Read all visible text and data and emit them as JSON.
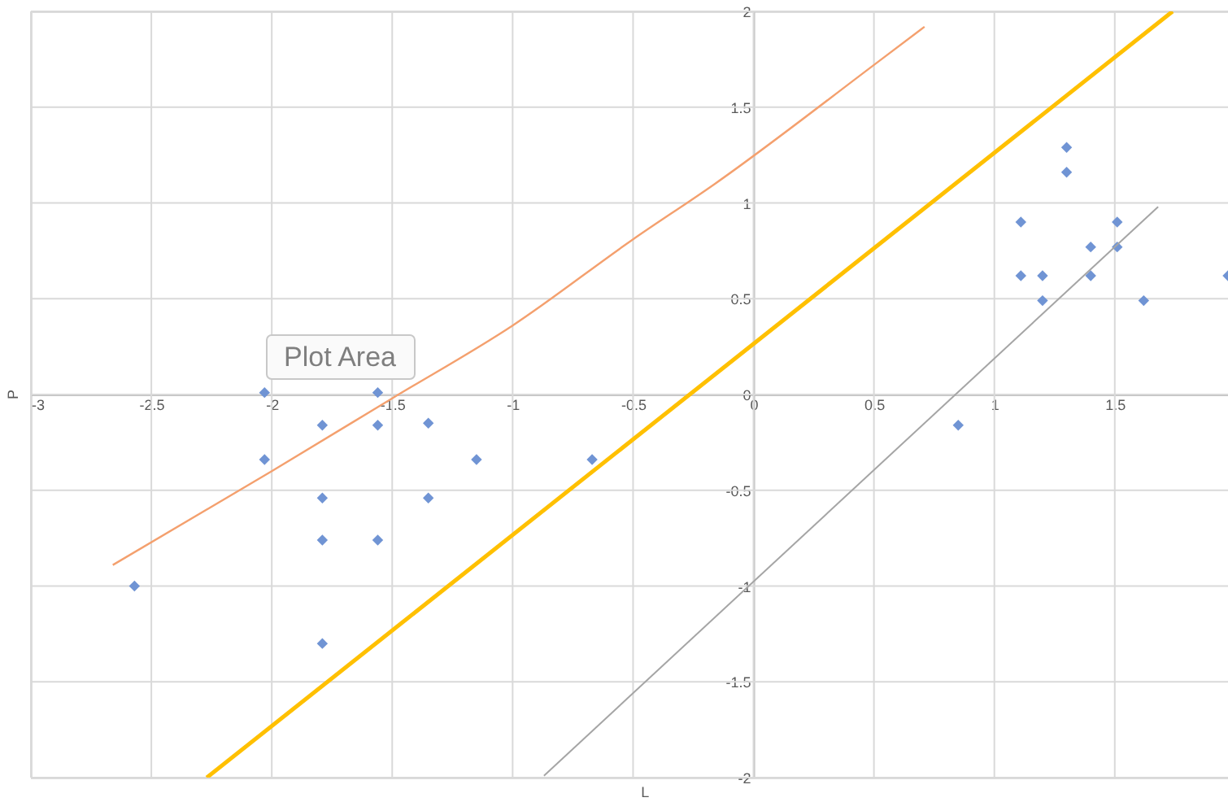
{
  "chart_data": {
    "type": "scatter",
    "xlabel": "L",
    "ylabel": "P",
    "annotations": [
      "Plot Area"
    ],
    "xlim": [
      -3,
      1.97
    ],
    "ylim": [
      -2,
      2
    ],
    "xticks": [
      -3,
      -2.5,
      -2,
      -1.5,
      -1,
      -0.5,
      0,
      0.5,
      1,
      1.5
    ],
    "yticks": [
      -2,
      -1.5,
      -1,
      -0.5,
      0,
      0.5,
      1,
      1.5,
      2
    ],
    "grid": true,
    "marker": "diamond",
    "series": [
      {
        "color": "#7094d4",
        "x": [
          -2.03,
          -1.56,
          -1.79,
          -1.56,
          -1.35,
          -2.03,
          -1.15,
          -0.67,
          -1.79,
          -1.35,
          -1.79,
          -1.56,
          -2.57,
          -1.79,
          0.85,
          1.11,
          1.11,
          1.2,
          1.2,
          1.3,
          1.3,
          1.4,
          1.4,
          1.51,
          1.51,
          1.62,
          1.97
        ],
        "values": [
          0.01,
          0.01,
          -0.16,
          -0.16,
          -0.15,
          -0.34,
          -0.34,
          -0.34,
          -0.54,
          -0.54,
          -0.76,
          -0.76,
          -1.0,
          -1.3,
          -0.16,
          0.9,
          0.62,
          0.62,
          0.49,
          1.29,
          1.16,
          0.77,
          0.62,
          0.9,
          0.77,
          0.49,
          0.62
        ]
      },
      {
        "type": "line",
        "color": "#f4a06e",
        "marker": "none",
        "x": [
          -2.66,
          -2.0,
          -1.5,
          -1.0,
          -0.5,
          -0.16,
          0.51,
          0.71
        ],
        "values": [
          -0.89,
          -0.4,
          -0.02,
          0.36,
          0.81,
          1.1,
          1.73,
          1.92
        ]
      },
      {
        "type": "line",
        "color": "#ffc000",
        "marker": "none",
        "x": [
          -2.27,
          1.74
        ],
        "values": [
          -2.0,
          2.0
        ]
      },
      {
        "type": "line",
        "color": "#a5a5a5",
        "marker": "none",
        "x": [
          -0.87,
          1.68
        ],
        "values": [
          -1.99,
          0.98
        ]
      }
    ]
  }
}
